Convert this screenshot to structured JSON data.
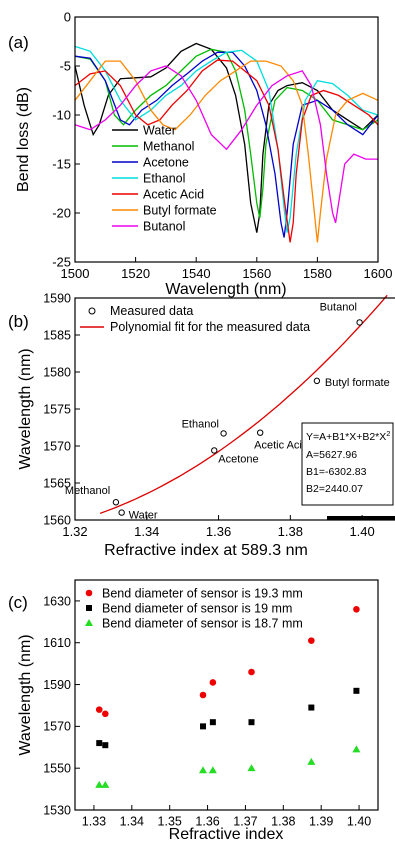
{
  "panels": [
    {
      "label": "(a)"
    },
    {
      "label": "(b)"
    },
    {
      "label": "(c)"
    }
  ],
  "chart_data": [
    {
      "type": "line",
      "panel": "(a)",
      "xlabel": "Wavelength (nm)",
      "ylabel": "Bend loss (dB)",
      "xlim": [
        1500,
        1600
      ],
      "ylim": [
        -25,
        0
      ],
      "xticks": [
        1500,
        1520,
        1540,
        1560,
        1580,
        1600
      ],
      "yticks": [
        0,
        -5,
        -10,
        -15,
        -20,
        -25
      ],
      "legend_position": "bottom-left",
      "series": [
        {
          "name": "Water",
          "color": "#000000",
          "x": [
            1500,
            1503,
            1506,
            1508,
            1511,
            1515,
            1520,
            1525,
            1530,
            1535,
            1540,
            1545,
            1550,
            1553,
            1556,
            1558,
            1560,
            1561,
            1562,
            1564,
            1567,
            1570,
            1575,
            1580,
            1585,
            1590,
            1595,
            1600
          ],
          "y": [
            -5.0,
            -9.0,
            -12.0,
            -11.0,
            -8.0,
            -6.3,
            -6.2,
            -6.1,
            -5.2,
            -3.5,
            -2.7,
            -3.3,
            -5.2,
            -8.0,
            -13.0,
            -19.0,
            -22.0,
            -20.0,
            -14.0,
            -9.0,
            -7.5,
            -7.0,
            -6.7,
            -7.5,
            -9.5,
            -10.5,
            -11.5,
            -10.0
          ]
        },
        {
          "name": "Methanol",
          "color": "#00bb00",
          "x": [
            1500,
            1505,
            1510,
            1513,
            1516,
            1520,
            1525,
            1530,
            1535,
            1540,
            1545,
            1550,
            1553,
            1556,
            1558,
            1560,
            1561,
            1562,
            1563,
            1566,
            1570,
            1575,
            1580,
            1585,
            1590,
            1595,
            1600
          ],
          "y": [
            -4.0,
            -4.3,
            -6.5,
            -10.0,
            -11.0,
            -9.5,
            -8.0,
            -7.0,
            -5.5,
            -4.0,
            -3.3,
            -3.6,
            -5.5,
            -9.5,
            -14.0,
            -19.0,
            -20.5,
            -17.5,
            -13.0,
            -8.5,
            -7.2,
            -7.5,
            -8.5,
            -10.5,
            -11.0,
            -11.5,
            -10.5
          ]
        },
        {
          "name": "Acetone",
          "color": "#0000cc",
          "x": [
            1500,
            1505,
            1510,
            1515,
            1518,
            1522,
            1527,
            1532,
            1537,
            1542,
            1547,
            1552,
            1556,
            1560,
            1563,
            1566,
            1568,
            1569,
            1570,
            1572,
            1575,
            1580,
            1585,
            1590,
            1595,
            1600
          ],
          "y": [
            -4.0,
            -4.2,
            -6.5,
            -10.5,
            -11.0,
            -9.5,
            -8.5,
            -7.0,
            -5.8,
            -4.5,
            -3.6,
            -3.6,
            -5.0,
            -7.5,
            -11.0,
            -16.0,
            -21.0,
            -22.5,
            -20.0,
            -13.0,
            -9.0,
            -8.5,
            -9.5,
            -11.0,
            -12.0,
            -10.0
          ]
        },
        {
          "name": "Ethanol",
          "color": "#00dddd",
          "x": [
            1500,
            1505,
            1510,
            1515,
            1520,
            1525,
            1530,
            1535,
            1540,
            1545,
            1550,
            1555,
            1560,
            1564,
            1567,
            1569,
            1570,
            1571,
            1573,
            1576,
            1580,
            1585,
            1590,
            1595,
            1600
          ],
          "y": [
            -3.0,
            -3.5,
            -5.5,
            -8.5,
            -10.5,
            -9.5,
            -8.0,
            -7.0,
            -5.5,
            -4.5,
            -3.6,
            -3.4,
            -4.5,
            -7.5,
            -13.5,
            -19.5,
            -22.0,
            -20.5,
            -14.0,
            -8.5,
            -6.5,
            -6.8,
            -8.0,
            -9.5,
            -10.0
          ]
        },
        {
          "name": "Acetic Acid",
          "color": "#ee0000",
          "x": [
            1500,
            1505,
            1510,
            1515,
            1520,
            1524,
            1528,
            1532,
            1537,
            1542,
            1547,
            1552,
            1556,
            1560,
            1564,
            1567,
            1569,
            1571,
            1572,
            1573,
            1575,
            1578,
            1582,
            1587,
            1592,
            1597,
            1600
          ],
          "y": [
            -7.0,
            -5.8,
            -5.5,
            -7.0,
            -10.0,
            -11.0,
            -10.5,
            -9.0,
            -7.5,
            -5.5,
            -4.4,
            -4.5,
            -5.5,
            -6.5,
            -9.0,
            -13.5,
            -18.5,
            -23.0,
            -21.0,
            -16.0,
            -10.5,
            -8.0,
            -7.5,
            -8.0,
            -9.0,
            -10.0,
            -11.0
          ]
        },
        {
          "name": "Butyl formate",
          "color": "#ff8800",
          "x": [
            1500,
            1505,
            1510,
            1515,
            1520,
            1525,
            1529,
            1533,
            1538,
            1543,
            1548,
            1553,
            1558,
            1563,
            1568,
            1572,
            1575,
            1577,
            1579,
            1580,
            1581,
            1583,
            1586,
            1590,
            1595,
            1600
          ],
          "y": [
            -8.5,
            -6.5,
            -4.5,
            -4.5,
            -6.5,
            -9.5,
            -11.0,
            -11.5,
            -10.0,
            -8.0,
            -6.5,
            -5.5,
            -4.5,
            -4.5,
            -5.0,
            -6.5,
            -9.0,
            -14.0,
            -20.0,
            -23.0,
            -20.0,
            -14.5,
            -10.0,
            -8.5,
            -7.8,
            -8.5
          ]
        },
        {
          "name": "Butanol",
          "color": "#ee00ee",
          "x": [
            1500,
            1505,
            1510,
            1515,
            1520,
            1525,
            1530,
            1535,
            1540,
            1545,
            1550,
            1555,
            1560,
            1565,
            1570,
            1575,
            1578,
            1581,
            1583,
            1585,
            1586,
            1587,
            1589,
            1592,
            1596,
            1600
          ],
          "y": [
            -11.0,
            -11.5,
            -10.5,
            -9.0,
            -7.0,
            -5.5,
            -5.0,
            -6.0,
            -8.5,
            -12.0,
            -13.5,
            -11.5,
            -9.0,
            -7.0,
            -6.0,
            -5.5,
            -7.0,
            -11.0,
            -16.0,
            -20.0,
            -21.0,
            -19.0,
            -15.0,
            -14.0,
            -14.5,
            -14.5
          ]
        }
      ]
    },
    {
      "type": "scatter",
      "panel": "(b)",
      "xlabel": "Refractive index at 589.3 nm",
      "ylabel": "Wavelength (nm)",
      "xlim": [
        1.32,
        1.41
      ],
      "ylim": [
        1560,
        1590
      ],
      "xticks": [
        "1.32",
        "1.34",
        "1.36",
        "1.38",
        "1.40"
      ],
      "yticks": [
        "1560",
        "1565",
        "1570",
        "1575",
        "1580",
        "1585",
        "1590"
      ],
      "legend": [
        "Measured data",
        "Polynomial fit for the measured data"
      ],
      "fit_color": "#dd0000",
      "points": [
        {
          "label": "Methanol",
          "x": 1.3314,
          "y": 1562.4
        },
        {
          "label": "Water",
          "x": 1.333,
          "y": 1561.0
        },
        {
          "label": "Acetone",
          "x": 1.3588,
          "y": 1569.4
        },
        {
          "label": "Ethanol",
          "x": 1.3614,
          "y": 1571.7
        },
        {
          "label": "Acetic Acid",
          "x": 1.3716,
          "y": 1571.8
        },
        {
          "label": "Butyl formate",
          "x": 1.3874,
          "y": 1578.8
        },
        {
          "label": "Butanol",
          "x": 1.3993,
          "y": 1586.7
        }
      ],
      "fit": {
        "equation": "Y=A+B1*X+B2*X",
        "equation_sup": "2",
        "A": "A=5627.96",
        "B1": "B1=-6302.83",
        "B2": "B2=2440.07",
        "coeffs": [
          5627.96,
          -6302.83,
          2440.07
        ]
      }
    },
    {
      "type": "scatter",
      "panel": "(c)",
      "xlabel": "Refractive index",
      "ylabel": "Wavelength (nm)",
      "xlim": [
        1.325,
        1.405
      ],
      "ylim": [
        1530,
        1640
      ],
      "xticks": [
        "1.33",
        "1.34",
        "1.35",
        "1.36",
        "1.37",
        "1.38",
        "1.39",
        "1.40"
      ],
      "yticks": [
        "1530",
        "1550",
        "1570",
        "1590",
        "1610",
        "1630"
      ],
      "x": [
        1.3314,
        1.333,
        1.3588,
        1.3614,
        1.3716,
        1.3874,
        1.3993
      ],
      "series": [
        {
          "name": "Bend diameter of sensor is 19.3 mm",
          "marker": "circle",
          "color": "#ee0000",
          "y": [
            1578,
            1576,
            1585,
            1591,
            1596,
            1611,
            1626
          ]
        },
        {
          "name": "Bend diameter of sensor is 19 mm",
          "marker": "square",
          "color": "#000000",
          "y": [
            1562,
            1561,
            1570,
            1572,
            1572,
            1579,
            1587
          ]
        },
        {
          "name": "Bend diameter of sensor is 18.7 mm",
          "marker": "triangle",
          "color": "#22dd22",
          "y": [
            1542,
            1542,
            1549,
            1549,
            1550,
            1553,
            1559
          ]
        }
      ]
    }
  ]
}
